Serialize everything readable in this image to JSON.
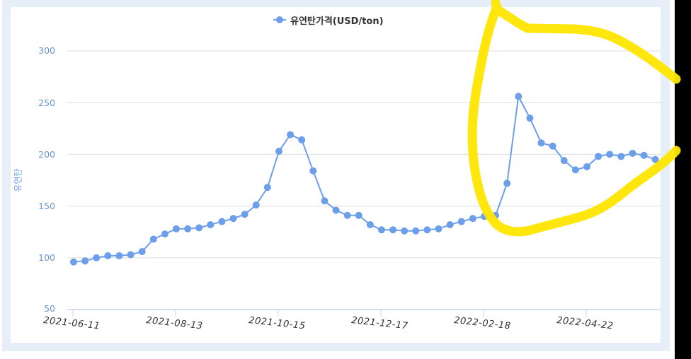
{
  "chart": {
    "legend_label": "유연탄가격(USD/ton)",
    "y_title": "유연탄",
    "series_color": "#6d9eea",
    "grid_color": "#dddddd",
    "axis_color": "#ccd6eb",
    "annotation_color": "#ffe600",
    "y_ticks": [
      "300",
      "250",
      "200",
      "150",
      "100",
      "50"
    ],
    "x_ticks": [
      "2021-06-11",
      "2021-08-13",
      "2021-10-15",
      "2021-12-17",
      "2022-02-18",
      "2022-04-22"
    ]
  },
  "chart_data": {
    "type": "line",
    "title": "",
    "legend": [
      "유연탄가격(USD/ton)"
    ],
    "legend_position": "top",
    "xlabel": "",
    "ylabel": "유연탄",
    "ylim": [
      50,
      330
    ],
    "yticks": [
      50,
      100,
      150,
      200,
      250,
      300
    ],
    "grid": true,
    "x_tick_labels": [
      "2021-06-11",
      "2021-08-13",
      "2021-10-15",
      "2021-12-17",
      "2022-02-18",
      "2022-04-22"
    ],
    "x": [
      "2021-06-11",
      "2021-06-18",
      "2021-06-25",
      "2021-07-02",
      "2021-07-09",
      "2021-07-16",
      "2021-07-23",
      "2021-07-30",
      "2021-08-06",
      "2021-08-13",
      "2021-08-20",
      "2021-08-27",
      "2021-09-03",
      "2021-09-10",
      "2021-09-17",
      "2021-09-24",
      "2021-10-01",
      "2021-10-08",
      "2021-10-15",
      "2021-10-22",
      "2021-10-29",
      "2021-11-05",
      "2021-11-12",
      "2021-11-19",
      "2021-11-26",
      "2021-12-03",
      "2021-12-10",
      "2021-12-17",
      "2021-12-24",
      "2021-12-31",
      "2022-01-07",
      "2022-01-14",
      "2022-01-21",
      "2022-01-28",
      "2022-02-04",
      "2022-02-11",
      "2022-02-18",
      "2022-02-25",
      "2022-03-04",
      "2022-03-11",
      "2022-03-18",
      "2022-03-25",
      "2022-04-01",
      "2022-04-08",
      "2022-04-15",
      "2022-04-22",
      "2022-04-29",
      "2022-05-06",
      "2022-05-13",
      "2022-05-20",
      "2022-05-27",
      "2022-06-03"
    ],
    "series": [
      {
        "name": "유연탄가격(USD/ton)",
        "values": [
          96,
          97,
          100,
          102,
          102,
          103,
          106,
          118,
          123,
          128,
          128,
          129,
          132,
          135,
          138,
          142,
          151,
          168,
          203,
          219,
          214,
          184,
          155,
          146,
          141,
          141,
          132,
          127,
          127,
          126,
          126,
          127,
          128,
          132,
          135,
          138,
          140,
          141,
          172,
          256,
          235,
          211,
          208,
          194,
          185,
          188,
          198,
          200,
          198,
          201,
          199,
          195
        ]
      }
    ],
    "annotations": [
      {
        "type": "freehand-circle",
        "color": "#ffe600",
        "description": "yellow hand-drawn loop highlighting the spike from 2022-02-18 onward"
      }
    ]
  }
}
